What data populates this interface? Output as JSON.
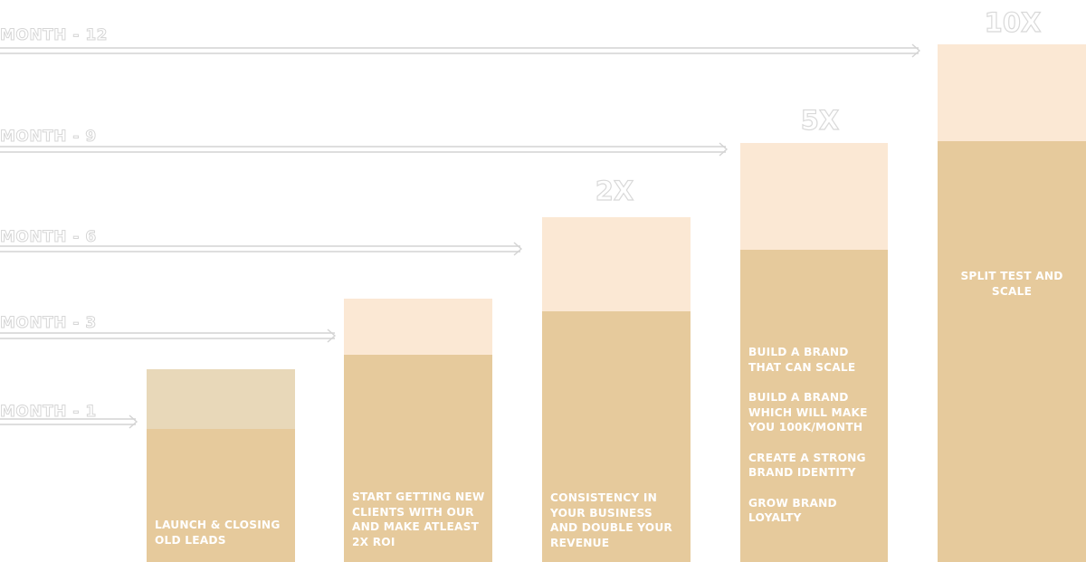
{
  "colors": {
    "bar_body": "#e6ca9c",
    "bar_top": "#fbe8d4",
    "first_bar_top": "#e8d8b9",
    "outline_text": "#d6d6d6"
  },
  "milestones": [
    {
      "month_label": "MONTH - 1",
      "multiplier": "",
      "items": [
        "LAUNCH & CLOSING OLD LEADS"
      ]
    },
    {
      "month_label": "MONTH - 3",
      "multiplier": "",
      "items": [
        "START GETTING NEW CLIENTS WITH OUR AND MAKE ATLEAST 2X ROI"
      ]
    },
    {
      "month_label": "MONTH - 6",
      "multiplier": "2X",
      "items": [
        "CONSISTENCY IN YOUR BUSINESS AND DOUBLE YOUR REVENUE"
      ]
    },
    {
      "month_label": "MONTH - 9",
      "multiplier": "5X",
      "items": [
        "BUILD A BRAND THAT CAN SCALE",
        "BUILD A BRAND WHICH WILL MAKE YOU 100K/MONTH",
        "CREATE A STRONG BRAND IDENTITY",
        "GROW BRAND LOYALTY"
      ]
    },
    {
      "month_label": "MONTH - 12",
      "multiplier": "10X",
      "items": [
        "SPLIT TEST AND SCALE"
      ]
    }
  ]
}
